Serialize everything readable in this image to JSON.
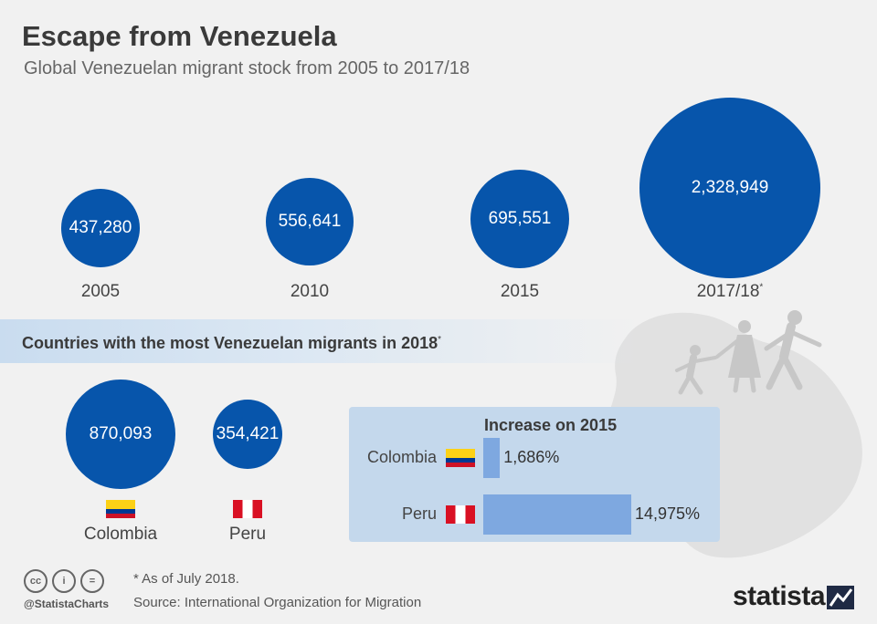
{
  "header": {
    "title": "Escape from Venezuela",
    "subtitle": "Global Venezuelan migrant stock from 2005 to 2017/18"
  },
  "chart_data": [
    {
      "type": "bubble",
      "categories": [
        "2005",
        "2010",
        "2015",
        "2017/18"
      ],
      "values": [
        437280,
        556641,
        695551,
        2328949
      ],
      "value_labels": [
        "437,280",
        "556,641",
        "695,551",
        "2,328,949"
      ],
      "category_marks": [
        "",
        "",
        "",
        "*"
      ],
      "color": "#0755ab"
    },
    {
      "type": "bubble",
      "title": "Countries with the most Venezuelan migrants in 2018",
      "title_mark": "*",
      "categories": [
        "Colombia",
        "Peru"
      ],
      "values": [
        870093,
        354421
      ],
      "value_labels": [
        "870,093",
        "354,421"
      ],
      "flags": [
        "colombia-flag",
        "peru-flag"
      ],
      "color": "#0755ab"
    },
    {
      "type": "bar",
      "title": "Increase on 2015",
      "categories": [
        "Colombia",
        "Peru"
      ],
      "values": [
        1686,
        14975
      ],
      "value_labels": [
        "1,686%",
        "14,975%"
      ],
      "flags": [
        "colombia-flag",
        "peru-flag"
      ],
      "color": "#7ea8e0"
    }
  ],
  "footer": {
    "note": "* As of July 2018.",
    "source": "Source: International Organization for Migration",
    "handle": "@StatistaCharts",
    "license_icons": [
      "cc",
      "i",
      "="
    ],
    "brand": "statista"
  },
  "colors": {
    "bubble": "#0755ab",
    "bar": "#7ea8e0",
    "panel": "#c4d8ec",
    "background": "#f1f1f1"
  }
}
